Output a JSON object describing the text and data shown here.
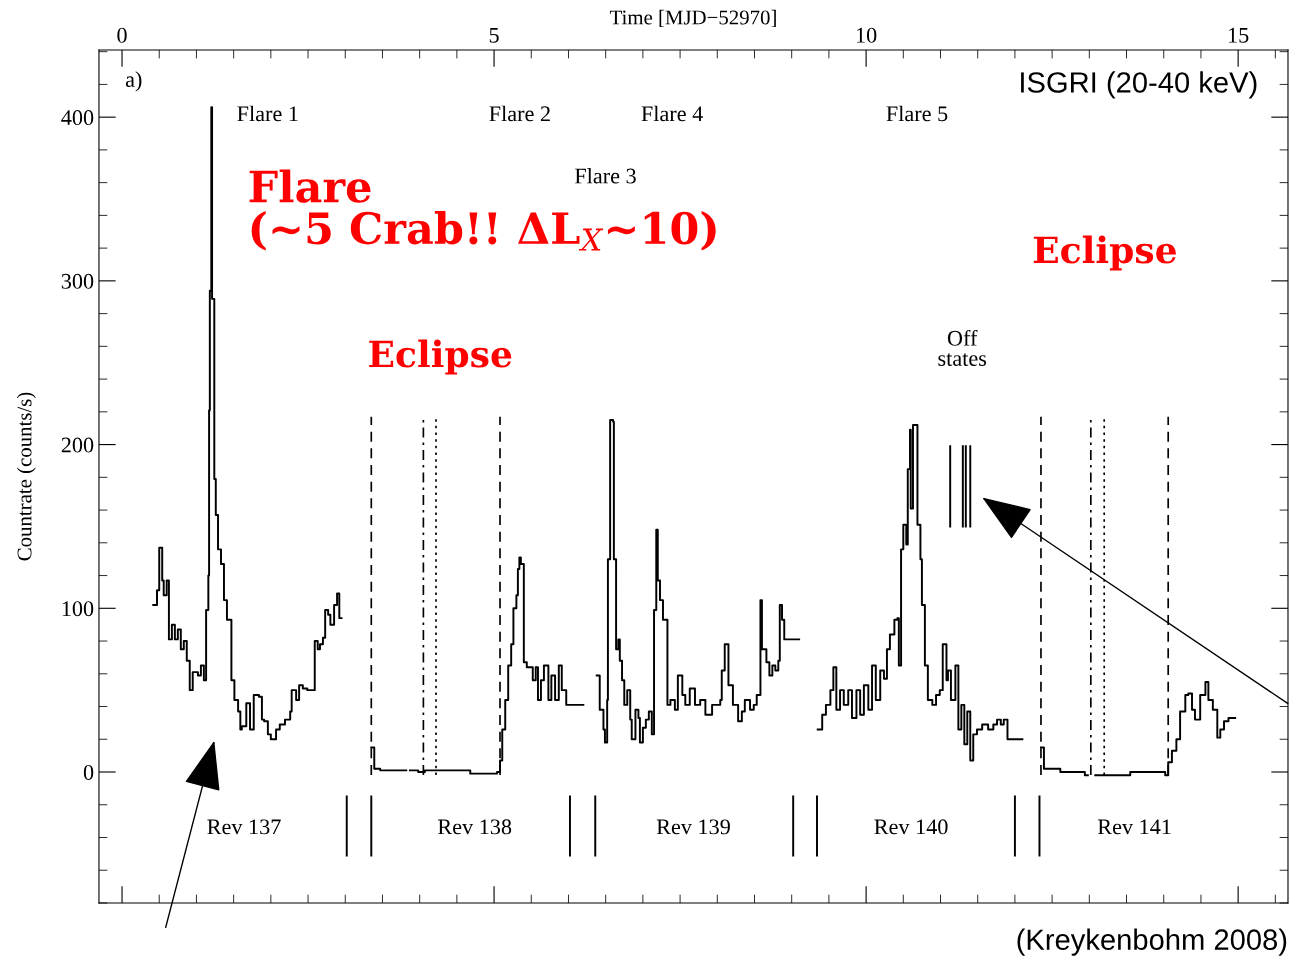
{
  "chart_data": {
    "type": "step",
    "xlabel": "Time [MJD−52970]",
    "ylabel": "Countrate (counts/s)",
    "xlim": [
      -0.31,
      15.67
    ],
    "ylim": [
      -80,
      441
    ],
    "xticks": [
      0,
      5,
      10,
      15
    ],
    "yticks": [
      0,
      100,
      200,
      300,
      400
    ],
    "grid": false,
    "series": [
      {
        "color": "#000000",
        "x": [
          0.42,
          0.47,
          0.5,
          0.54,
          0.56,
          0.6,
          0.63,
          0.67,
          0.71,
          0.75,
          0.79,
          0.83,
          0.87,
          0.91,
          0.95,
          1.02,
          1.06,
          1.1,
          1.13,
          1.16,
          1.17,
          1.18,
          1.2,
          1.21,
          1.24,
          1.26,
          1.29,
          1.33,
          1.37,
          1.41,
          1.47,
          1.51,
          1.56,
          1.59,
          1.61,
          1.67,
          1.72,
          1.77,
          1.84,
          1.88,
          1.91,
          1.96,
          2.0,
          2.07,
          2.12,
          2.19,
          2.26,
          2.28,
          2.34,
          2.38,
          2.43,
          2.49,
          2.54,
          2.59,
          2.63,
          2.66,
          2.7,
          2.73,
          2.77,
          2.8,
          2.85,
          2.89,
          2.92,
          2.95,
          3.35,
          3.39,
          3.47,
          3.67,
          3.78,
          3.82,
          3.87,
          3.98,
          4.07,
          4.27,
          4.68,
          5.04,
          5.08,
          5.11,
          5.15,
          5.19,
          5.23,
          5.26,
          5.3,
          5.32,
          5.34,
          5.36,
          5.4,
          5.44,
          5.52,
          5.56,
          5.59,
          5.63,
          5.67,
          5.73,
          5.77,
          5.82,
          5.87,
          5.91,
          5.97,
          6.2,
          6.38,
          6.42,
          6.47,
          6.49,
          6.52,
          6.53,
          6.56,
          6.6,
          6.61,
          6.64,
          6.67,
          6.69,
          6.72,
          6.75,
          6.79,
          6.83,
          6.85,
          6.9,
          6.94,
          6.96,
          7.0,
          7.04,
          7.08,
          7.12,
          7.15,
          7.18,
          7.2,
          7.23,
          7.27,
          7.33,
          7.37,
          7.43,
          7.47,
          7.53,
          7.57,
          7.63,
          7.7,
          7.77,
          7.84,
          7.93,
          8.04,
          8.06,
          8.1,
          8.15,
          8.21,
          8.28,
          8.33,
          8.37,
          8.44,
          8.49,
          8.53,
          8.58,
          8.6,
          8.66,
          8.7,
          8.74,
          8.78,
          8.82,
          8.84,
          8.87,
          8.9,
          9.1,
          9.35,
          9.41,
          9.46,
          9.52,
          9.56,
          9.6,
          9.65,
          9.7,
          9.76,
          9.81,
          9.87,
          9.92,
          9.97,
          10.03,
          10.08,
          10.13,
          10.19,
          10.24,
          10.28,
          10.32,
          10.38,
          10.42,
          10.44,
          10.47,
          10.5,
          10.54,
          10.56,
          10.59,
          10.6,
          10.63,
          10.69,
          10.73,
          10.75,
          10.79,
          10.83,
          10.89,
          10.94,
          10.99,
          11.03,
          11.08,
          11.1,
          11.14,
          11.2,
          11.24,
          11.28,
          11.32,
          11.36,
          11.4,
          11.44,
          11.49,
          11.56,
          11.64,
          11.71,
          11.76,
          11.81,
          11.85,
          11.9,
          12.1,
          12.35,
          12.39,
          12.61,
          12.94,
          12.98,
          13.08,
          13.55,
          13.88,
          14.02,
          14.06,
          14.11,
          14.17,
          14.22,
          14.29,
          14.33,
          14.38,
          14.42,
          14.49,
          14.56,
          14.6,
          14.66,
          14.72,
          14.76,
          14.81,
          14.87,
          14.96
        ],
        "values": [
          102,
          111,
          137,
          117,
          108,
          117,
          81,
          90,
          81,
          87,
          75,
          80,
          68,
          50,
          61,
          59,
          65,
          56,
          99,
          120,
          221,
          294,
          406,
          289,
          179,
          157,
          136,
          127,
          105,
          93,
          56,
          44,
          37,
          26,
          28,
          42,
          26,
          47,
          46,
          32,
          31,
          23,
          20,
          26,
          29,
          32,
          37,
          50,
          44,
          53,
          51,
          50,
          50,
          80,
          75,
          78,
          82,
          99,
          96,
          90,
          102,
          109,
          94,
          null,
          15,
          2,
          1,
          1,
          1,
          null,
          1,
          0,
          1,
          1,
          -1,
          0,
          7,
          26,
          44,
          65,
          78,
          100,
          108,
          124,
          131,
          127,
          67,
          64,
          56,
          64,
          44,
          56,
          65,
          44,
          59,
          44,
          65,
          50,
          41,
          null,
          59,
          38,
          26,
          18,
          44,
          130,
          215,
          214,
          130,
          75,
          81,
          68,
          56,
          41,
          50,
          32,
          20,
          38,
          33,
          18,
          27,
          32,
          37,
          23,
          99,
          148,
          117,
          105,
          93,
          41,
          44,
          38,
          59,
          47,
          41,
          51,
          41,
          44,
          35,
          41,
          44,
          62,
          78,
          53,
          41,
          31,
          37,
          44,
          38,
          41,
          47,
          105,
          75,
          67,
          59,
          65,
          62,
          68,
          102,
          93,
          81,
          null,
          26,
          35,
          41,
          50,
          64,
          38,
          50,
          41,
          50,
          33,
          50,
          35,
          53,
          38,
          65,
          44,
          62,
          57,
          75,
          84,
          93,
          94,
          65,
          136,
          151,
          139,
          185,
          209,
          161,
          212,
          151,
          130,
          102,
          65,
          44,
          41,
          47,
          50,
          78,
          56,
          62,
          44,
          65,
          26,
          41,
          17,
          37,
          7,
          23,
          26,
          29,
          26,
          29,
          32,
          29,
          32,
          20,
          null,
          15,
          2,
          0,
          -2,
          null,
          -2,
          0,
          0,
          -2,
          6,
          13,
          20,
          37,
          47,
          48,
          38,
          32,
          47,
          55,
          44,
          38,
          21,
          26,
          31,
          33,
          33
        ]
      },
      {
        "type": "line",
        "color": "#000000",
        "x": [
          11.13,
          11.13,
          null,
          11.3,
          11.3,
          null,
          11.34,
          11.34,
          null,
          11.4,
          11.4
        ],
        "values": [
          150,
          199,
          null,
          150,
          199,
          null,
          150,
          199,
          null,
          150,
          199
        ]
      },
      {
        "type": "line",
        "color": "#000000",
        "x": [
          3.02,
          3.02,
          null,
          3.35,
          3.35,
          null,
          6.02,
          6.02,
          null,
          6.36,
          6.36,
          null,
          9.02,
          9.02,
          null,
          9.34,
          9.34,
          null,
          12.0,
          12.0,
          null,
          12.33,
          12.33
        ],
        "values": [
          -15,
          -51,
          null,
          -15,
          -51,
          null,
          -15,
          -51,
          null,
          -15,
          -51,
          null,
          -15,
          -51,
          null,
          -15,
          -51,
          null,
          -15,
          -51,
          null,
          -15,
          -51
        ]
      }
    ],
    "ref_lines": [
      {
        "axis": "x",
        "value": 3.35,
        "line_style": "dashed",
        "color": "#000000"
      },
      {
        "axis": "x",
        "value": 5.08,
        "line_style": "dashed",
        "color": "#000000"
      },
      {
        "axis": "x",
        "value": 4.05,
        "line_style": "dashdot",
        "color": "#000000"
      },
      {
        "axis": "x",
        "value": 4.22,
        "line_style": "dotted",
        "color": "#000000"
      },
      {
        "axis": "x",
        "value": 12.35,
        "line_style": "dashed",
        "color": "#000000"
      },
      {
        "axis": "x",
        "value": 14.06,
        "line_style": "dashed",
        "color": "#000000"
      },
      {
        "axis": "x",
        "value": 13.02,
        "line_style": "dashdot",
        "color": "#000000"
      },
      {
        "axis": "x",
        "value": 13.2,
        "line_style": "dotted",
        "color": "#000000"
      }
    ],
    "annotations": [
      "a)",
      "ISGRI (20-40 keV)",
      "Flare\n(~5 Crab!! ΔL$_{X}$~10)",
      "(Kreykenbohm 2008)",
      "Eclipse",
      "Eclipse",
      "Flare 1",
      "Flare 2",
      "Flare 3",
      "Flare 4",
      "Flare 5",
      "Off\nstates",
      "Rev 137",
      "Rev 138",
      "Rev 139",
      "Rev 140",
      "Rev 141"
    ]
  }
}
